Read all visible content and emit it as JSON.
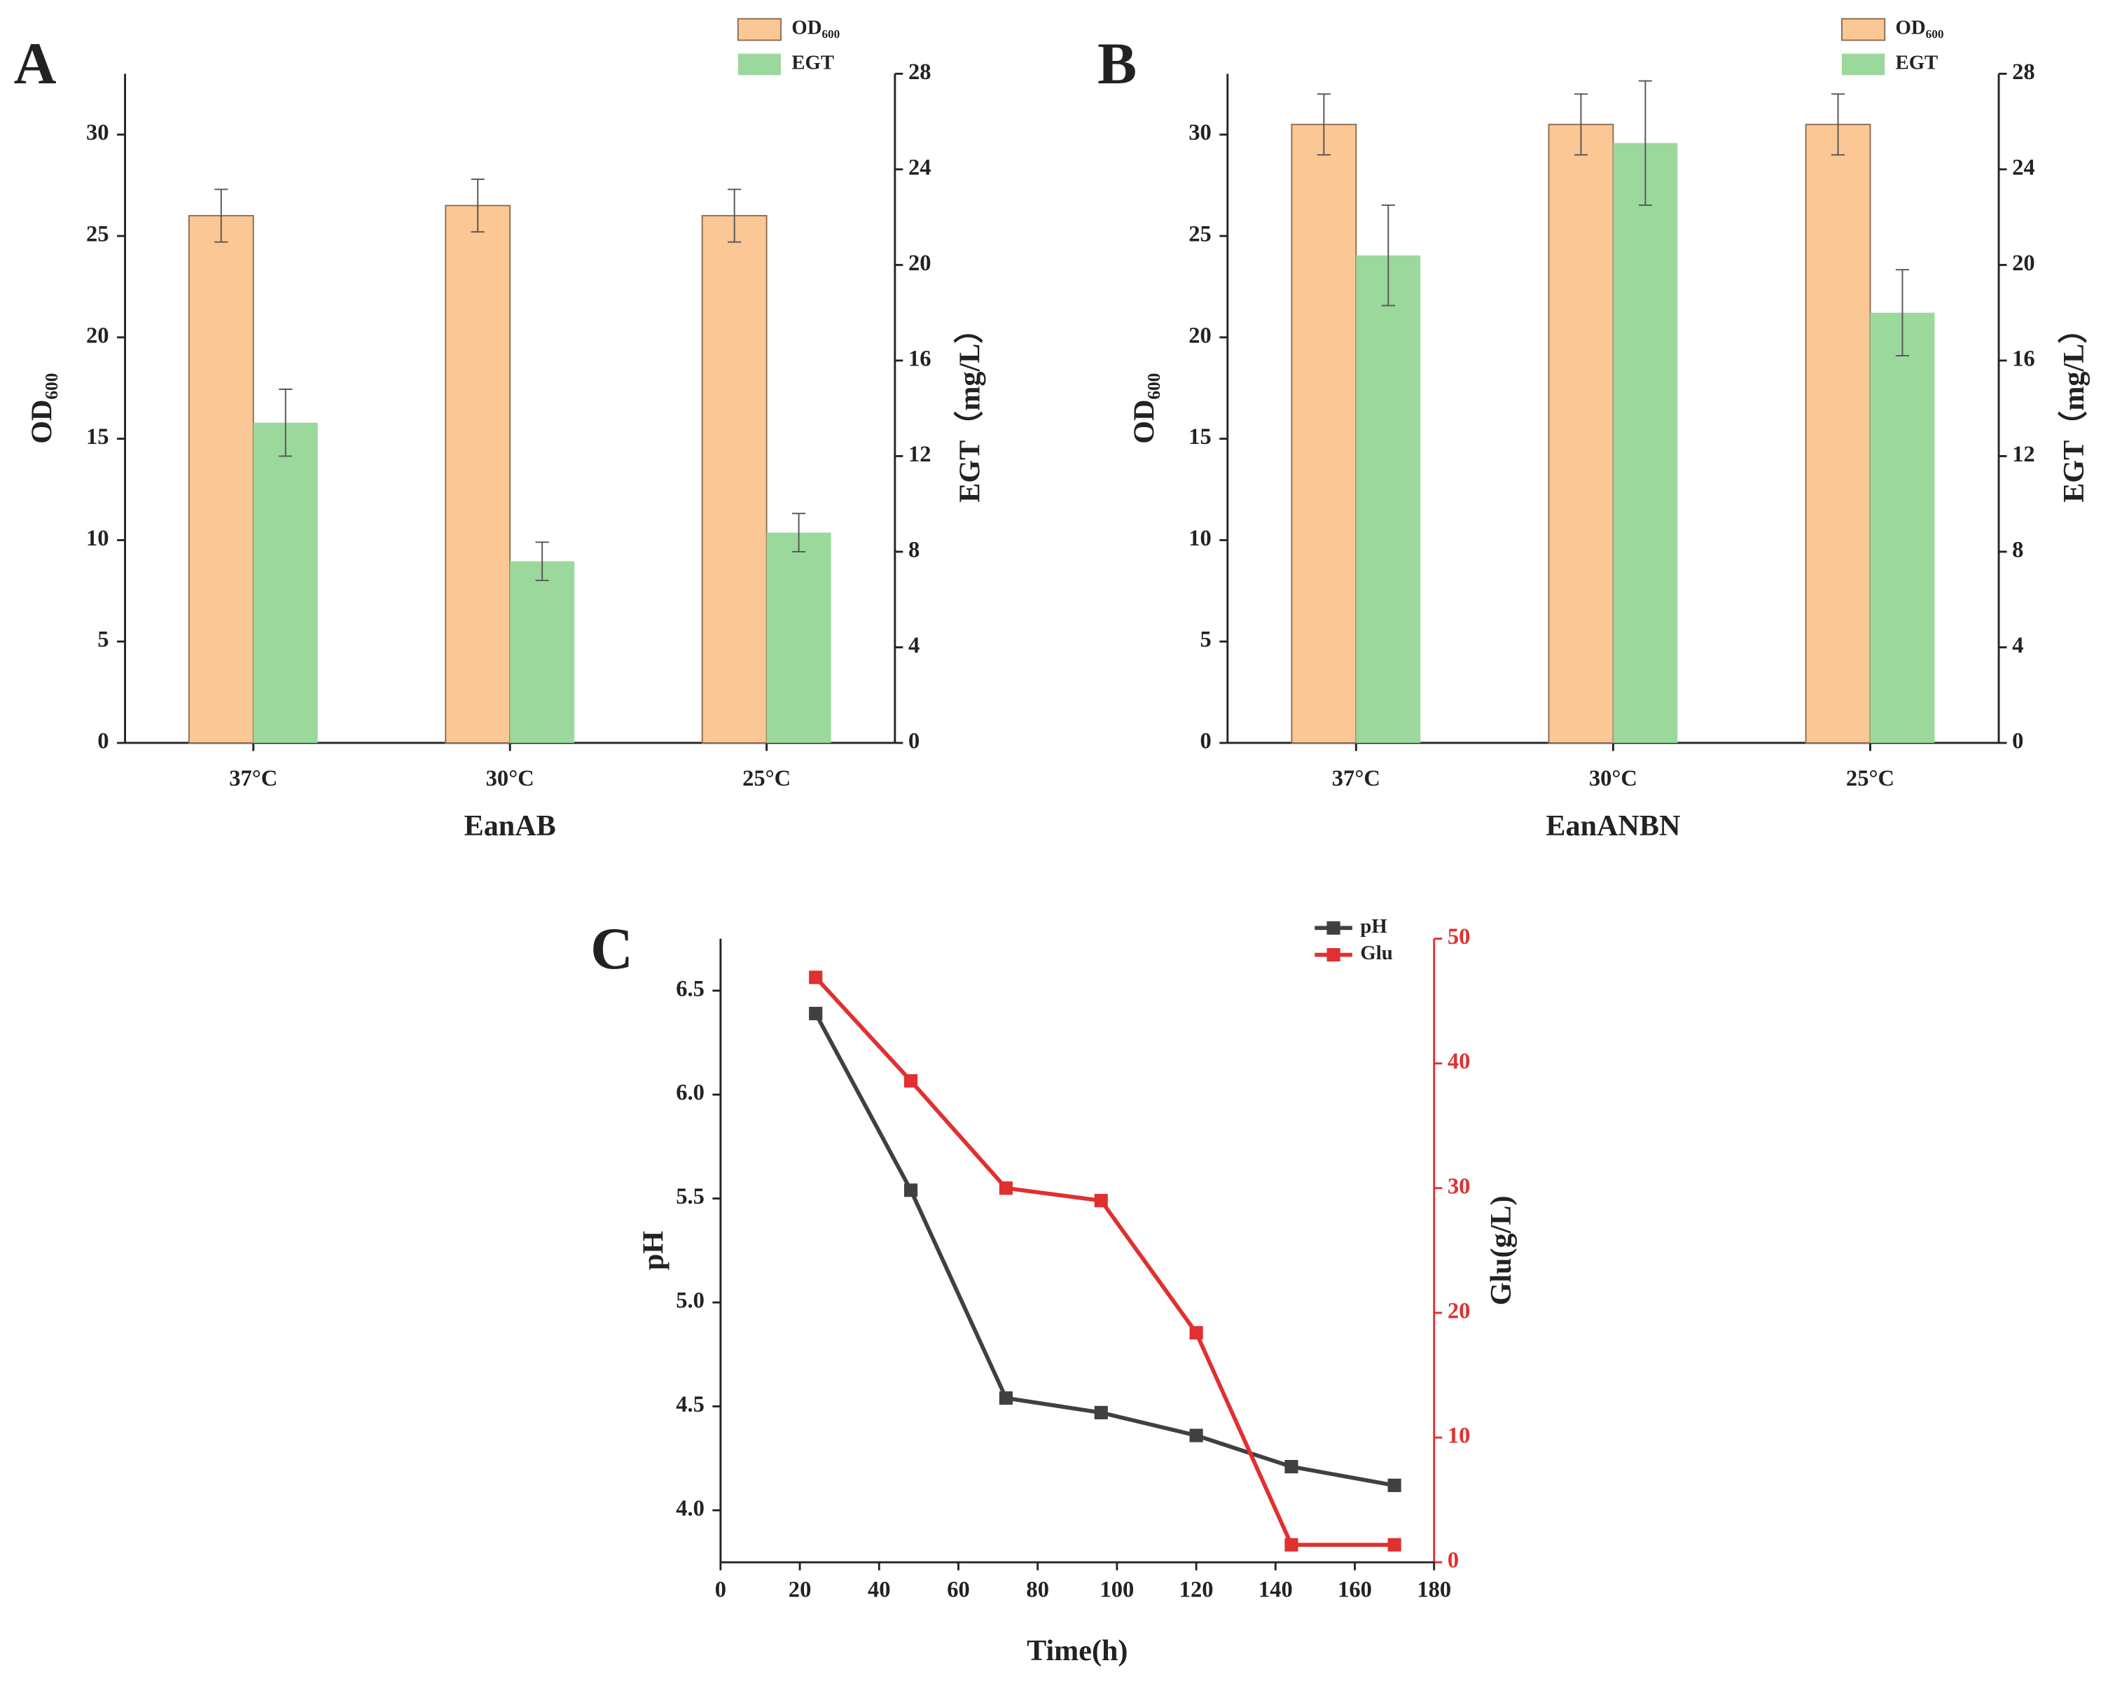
{
  "chart_data": [
    {
      "type": "bar",
      "label": "A",
      "xlabel": "EanAB",
      "ylabel": "OD₆₀₀",
      "y2label": "EGT（mg/L）",
      "categories": [
        "37°C",
        "30°C",
        "25°C"
      ],
      "ylim": [
        0,
        33
      ],
      "yticks": [
        0,
        5,
        10,
        15,
        20,
        25,
        30
      ],
      "y2lim": [
        0,
        28
      ],
      "y2ticks": [
        0,
        4,
        8,
        12,
        16,
        20,
        24,
        28
      ],
      "series": [
        {
          "name": "OD₆₀₀",
          "color": "#fbc795",
          "values": [
            26,
            26.5,
            26
          ],
          "errors": [
            1.3,
            1.3,
            1.3
          ]
        },
        {
          "name": "EGT",
          "color": "#9bd89b",
          "axis": "y2",
          "values": [
            13.4,
            7.6,
            8.8
          ],
          "errors": [
            1.4,
            0.8,
            0.8
          ]
        }
      ]
    },
    {
      "type": "bar",
      "label": "B",
      "xlabel": "EanANBN",
      "ylabel": "OD₆₀₀",
      "y2label": "EGT（mg/L）",
      "categories": [
        "37°C",
        "30°C",
        "25°C"
      ],
      "ylim": [
        0,
        33
      ],
      "yticks": [
        0,
        5,
        10,
        15,
        20,
        25,
        30
      ],
      "y2lim": [
        0,
        28
      ],
      "y2ticks": [
        0,
        4,
        8,
        12,
        16,
        20,
        24,
        28
      ],
      "series": [
        {
          "name": "OD₆₀₀",
          "color": "#fbc795",
          "values": [
            30.5,
            30.5,
            30.5
          ],
          "errors": [
            1.5,
            1.5,
            1.5
          ]
        },
        {
          "name": "EGT",
          "color": "#9bd89b",
          "axis": "y2",
          "values": [
            20.4,
            25.1,
            18.0
          ],
          "errors": [
            2.1,
            2.6,
            1.8
          ]
        }
      ]
    },
    {
      "type": "line",
      "label": "C",
      "xlabel": "Time(h)",
      "ylabel": "pH",
      "y2label": "Glu(g/L)",
      "x": [
        24,
        48,
        72,
        96,
        120,
        144,
        170
      ],
      "xlim": [
        0,
        180
      ],
      "xticks": [
        0,
        20,
        40,
        60,
        80,
        100,
        120,
        140,
        160,
        180
      ],
      "ylim": [
        3.75,
        6.75
      ],
      "yticks": [
        {
          "value": 4,
          "label": "4.0"
        },
        4.5,
        {
          "value": 5,
          "label": "5.0"
        },
        5.5,
        {
          "value": 6,
          "label": "6.0"
        },
        6.5
      ],
      "y2lim": [
        0,
        50
      ],
      "y2ticks": [
        0,
        10,
        20,
        30,
        40,
        50
      ],
      "series": [
        {
          "name": "pH",
          "color": "#404040",
          "values": [
            6.39,
            5.54,
            4.54,
            4.47,
            4.36,
            4.21,
            4.12
          ]
        },
        {
          "name": "Glu",
          "color": "#e03030",
          "axis": "y2",
          "values": [
            46.9,
            38.6,
            30.0,
            29.0,
            18.4,
            1.4,
            1.4
          ]
        }
      ]
    }
  ]
}
